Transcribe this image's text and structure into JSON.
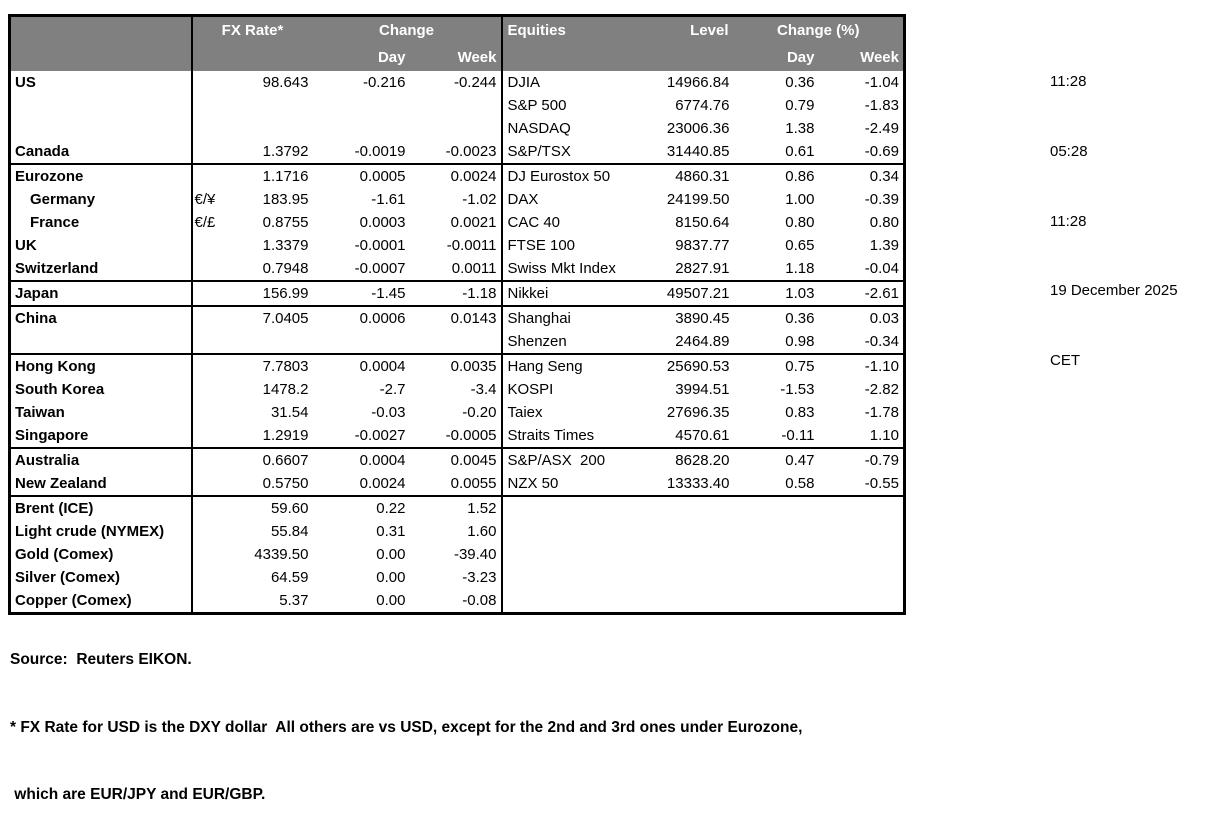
{
  "header": {
    "fx_rate": "FX Rate*",
    "change": "Change",
    "day": "Day",
    "week": "Week",
    "equities": "Equities",
    "level": "Level",
    "change_pct": "Change (%)",
    "day2": "Day",
    "week2": "Week"
  },
  "colors": {
    "header_bg": "#808080",
    "header_text": "#ffffff",
    "border": "#000000",
    "body_bg": "#ffffff"
  },
  "rows": [
    {
      "label": "US",
      "pair": "",
      "rate": "98.643",
      "day": "-0.216",
      "week": "-0.244",
      "eq": "DJIA",
      "level": "14966.84",
      "eqday": "0.36",
      "eqweek": "-1.04"
    },
    {
      "eq": "S&P 500",
      "level": "6774.76",
      "eqday": "0.79",
      "eqweek": "-1.83"
    },
    {
      "eq": "NASDAQ",
      "level": "23006.36",
      "eqday": "1.38",
      "eqweek": "-2.49"
    },
    {
      "label": "Canada",
      "rate": "1.3792",
      "day": "-0.0019",
      "week": "-0.0023",
      "eq": "S&P/TSX",
      "level": "31440.85",
      "eqday": "0.61",
      "eqweek": "-0.69"
    },
    {
      "sep": true,
      "label": "Eurozone",
      "rate": "1.1716",
      "day": "0.0005",
      "week": "0.0024",
      "eq": "DJ Eurostox 50",
      "level": "4860.31",
      "eqday": "0.86",
      "eqweek": "0.34"
    },
    {
      "indent": true,
      "label": "Germany",
      "pair": "€/¥",
      "rate": "183.95",
      "day": "-1.61",
      "week": "-1.02",
      "eq": "DAX",
      "level": "24199.50",
      "eqday": "1.00",
      "eqweek": "-0.39"
    },
    {
      "indent": true,
      "label": "France",
      "pair": "€/£",
      "rate": "0.8755",
      "day": "0.0003",
      "week": "0.0021",
      "eq": "CAC 40",
      "level": "8150.64",
      "eqday": "0.80",
      "eqweek": "0.80"
    },
    {
      "label": "UK",
      "rate": "1.3379",
      "day": "-0.0001",
      "week": "-0.0011",
      "eq": "FTSE 100",
      "level": "9837.77",
      "eqday": "0.65",
      "eqweek": "1.39"
    },
    {
      "label": "Switzerland",
      "rate": "0.7948",
      "day": "-0.0007",
      "week": "0.0011",
      "eq": "Swiss Mkt Index",
      "level": "2827.91",
      "eqday": "1.18",
      "eqweek": "-0.04"
    },
    {
      "sep": true,
      "label": "Japan",
      "rate": "156.99",
      "day": "-1.45",
      "week": "-1.18",
      "eq": "Nikkei",
      "level": "49507.21",
      "eqday": "1.03",
      "eqweek": "-2.61"
    },
    {
      "sep": true,
      "label": "China",
      "rate": "7.0405",
      "day": "0.0006",
      "week": "0.0143",
      "eq": "Shanghai",
      "level": "3890.45",
      "eqday": "0.36",
      "eqweek": "0.03"
    },
    {
      "eq": "Shenzen",
      "level": "2464.89",
      "eqday": "0.98",
      "eqweek": "-0.34"
    },
    {
      "sep": true,
      "label": "Hong Kong",
      "rate": "7.7803",
      "day": "0.0004",
      "week": "0.0035",
      "eq": "Hang Seng",
      "level": "25690.53",
      "eqday": "0.75",
      "eqweek": "-1.10"
    },
    {
      "label": "South Korea",
      "rate": "1478.2",
      "day": "-2.7",
      "week": "-3.4",
      "eq": "KOSPI",
      "level": "3994.51",
      "eqday": "-1.53",
      "eqweek": "-2.82"
    },
    {
      "label": "Taiwan",
      "rate": "31.54",
      "day": "-0.03",
      "week": "-0.20",
      "eq": "Taiex",
      "level": "27696.35",
      "eqday": "0.83",
      "eqweek": "-1.78"
    },
    {
      "label": "Singapore",
      "rate": "1.2919",
      "day": "-0.0027",
      "week": "-0.0005",
      "eq": "Straits Times",
      "level": "4570.61",
      "eqday": "-0.11",
      "eqweek": "1.10"
    },
    {
      "sep": true,
      "label": "Australia",
      "rate": "0.6607",
      "day": "0.0004",
      "week": "0.0045",
      "eq": "S&P/ASX  200",
      "level": "8628.20",
      "eqday": "0.47",
      "eqweek": "-0.79"
    },
    {
      "label": "New Zealand",
      "rate": "0.5750",
      "day": "0.0024",
      "week": "0.0055",
      "eq": "NZX 50",
      "level": "13333.40",
      "eqday": "0.58",
      "eqweek": "-0.55"
    },
    {
      "sep": true,
      "label": "Brent (ICE)",
      "rate": "59.60",
      "day": "0.22",
      "week": "1.52"
    },
    {
      "label": "Light crude (NYMEX)",
      "rate": "55.84",
      "day": "0.31",
      "week": "1.60"
    },
    {
      "label": "Gold (Comex)",
      "rate": "4339.50",
      "day": "0.00",
      "week": "-39.40"
    },
    {
      "label": "Silver (Comex)",
      "rate": "64.59",
      "day": "0.00",
      "week": "-3.23"
    },
    {
      "label": "Copper (Comex)",
      "rate": "5.37",
      "day": "0.00",
      "week": "-0.08"
    }
  ],
  "timestamps": [
    "11:28",
    "05:28",
    "11:28",
    "19 December 2025",
    "CET"
  ],
  "footer": {
    "source": "Source:  Reuters EIKON.",
    "note1": "* FX Rate for USD is the DXY dollar  All others are vs USD, except for the 2nd and 3rd ones under Eurozone,",
    "note2": " which are EUR/JPY and EUR/GBP."
  }
}
